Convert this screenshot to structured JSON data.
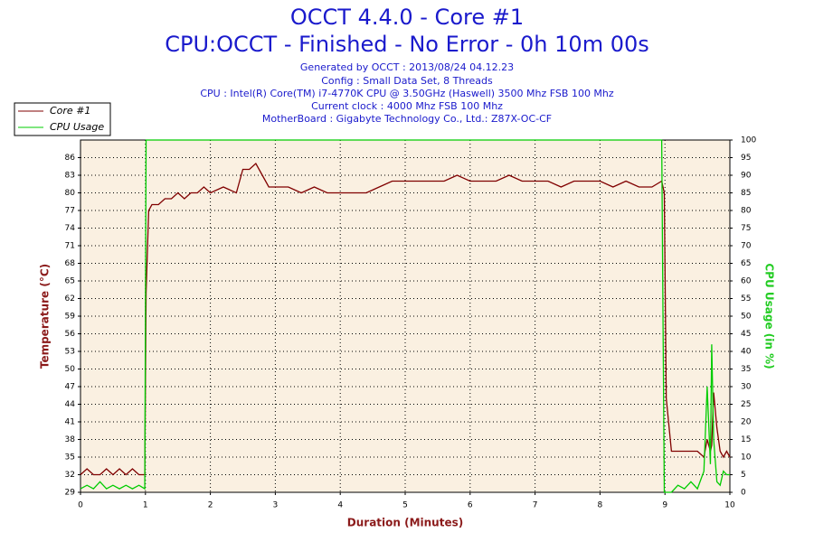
{
  "chart_data": {
    "type": "line",
    "title": "OCCT 4.4.0 - Core #1",
    "subtitle": "CPU:OCCT - Finished - No Error - 0h 10m 00s",
    "info": [
      "Generated by OCCT : 2013/08/24 04.12.23",
      "Config : Small Data Set, 8 Threads",
      "CPU : Intel(R) Core(TM) i7-4770K CPU @ 3.50GHz (Haswell) 3500 Mhz FSB 100 Mhz",
      "Current clock : 4000 Mhz FSB 100 Mhz",
      "MotherBoard : Gigabyte Technology Co., Ltd.: Z87X-OC-CF"
    ],
    "xlabel": "Duration (Minutes)",
    "ylabel": "Temperature (°C)",
    "y2label": "CPU Usage (in %)",
    "xlim": [
      0,
      10
    ],
    "xticks": [
      0,
      1,
      2,
      3,
      4,
      5,
      6,
      7,
      8,
      9,
      10
    ],
    "ylim": [
      29,
      89
    ],
    "yticks": [
      29,
      32,
      35,
      38,
      41,
      44,
      47,
      50,
      53,
      56,
      59,
      62,
      65,
      68,
      71,
      74,
      77,
      80,
      83,
      86
    ],
    "y2lim": [
      0,
      100
    ],
    "y2ticks": [
      0,
      5,
      10,
      15,
      20,
      25,
      30,
      35,
      40,
      45,
      50,
      55,
      60,
      65,
      70,
      75,
      80,
      85,
      90,
      95,
      100
    ],
    "grid": true,
    "legend": "top-left",
    "x": [
      0,
      0.1,
      0.2,
      0.3,
      0.4,
      0.5,
      0.6,
      0.7,
      0.8,
      0.9,
      0.99,
      1.01,
      1.05,
      1.1,
      1.2,
      1.3,
      1.4,
      1.5,
      1.6,
      1.7,
      1.8,
      1.9,
      2.0,
      2.2,
      2.4,
      2.5,
      2.6,
      2.7,
      2.8,
      2.9,
      3.0,
      3.2,
      3.4,
      3.6,
      3.8,
      4.0,
      4.2,
      4.4,
      4.6,
      4.8,
      5.0,
      5.2,
      5.4,
      5.6,
      5.8,
      6.0,
      6.2,
      6.4,
      6.6,
      6.8,
      7.0,
      7.2,
      7.4,
      7.6,
      7.8,
      8.0,
      8.2,
      8.4,
      8.6,
      8.8,
      8.95,
      8.99,
      9.02,
      9.1,
      9.2,
      9.3,
      9.4,
      9.5,
      9.6,
      9.65,
      9.7,
      9.72,
      9.75,
      9.8,
      9.85,
      9.9,
      9.95,
      10
    ],
    "series": [
      {
        "name": "Core #1",
        "color": "#800000",
        "axis": "y",
        "values": [
          32,
          33,
          32,
          32,
          33,
          32,
          33,
          32,
          33,
          32,
          32,
          63,
          77,
          78,
          78,
          79,
          79,
          80,
          79,
          80,
          80,
          81,
          80,
          81,
          80,
          84,
          84,
          85,
          83,
          81,
          81,
          81,
          80,
          81,
          80,
          80,
          80,
          80,
          81,
          82,
          82,
          82,
          82,
          82,
          83,
          82,
          82,
          82,
          83,
          82,
          82,
          82,
          81,
          82,
          82,
          82,
          81,
          82,
          81,
          81,
          82,
          80,
          45,
          36,
          36,
          36,
          36,
          36,
          35,
          38,
          36,
          37,
          46,
          40,
          36,
          35,
          36,
          35
        ]
      },
      {
        "name": "CPU Usage",
        "color": "#00cc00",
        "axis": "y2",
        "values": [
          1,
          2,
          1,
          3,
          1,
          2,
          1,
          2,
          1,
          2,
          1,
          100,
          100,
          100,
          100,
          100,
          100,
          100,
          100,
          100,
          100,
          100,
          100,
          100,
          100,
          100,
          100,
          100,
          100,
          100,
          100,
          100,
          100,
          100,
          100,
          100,
          100,
          100,
          100,
          100,
          100,
          100,
          100,
          100,
          100,
          100,
          100,
          100,
          100,
          100,
          100,
          100,
          100,
          100,
          100,
          100,
          100,
          100,
          100,
          100,
          100,
          0,
          0,
          0,
          2,
          1,
          3,
          1,
          6,
          30,
          8,
          42,
          15,
          3,
          2,
          6,
          5,
          5
        ]
      }
    ]
  }
}
